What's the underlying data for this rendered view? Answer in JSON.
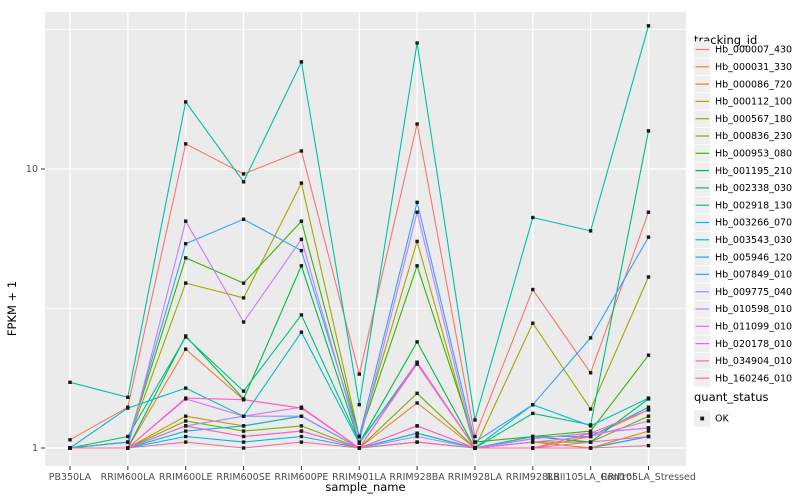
{
  "chart_data": {
    "type": "line",
    "title": "",
    "xlabel": "sample_name",
    "ylabel": "FPKM + 1",
    "y_scale": "log10",
    "y_tick_labels": [
      "1",
      "10"
    ],
    "y_ticks": [
      1,
      10
    ],
    "y_minor_breaks": [
      3.1623,
      31.6228
    ],
    "ylim": [
      0.93,
      38
    ],
    "grid": true,
    "legend_position": "right",
    "panel_background": "#EBEBEB",
    "grid_color": "#FFFFFF",
    "legend_key_fill": "#EFEFEF",
    "tick_color": "#333333",
    "axis_text_color": "#4D4D4D",
    "title_text_color": "#000000",
    "point_color": "#1A1A1A",
    "point_shape": "square",
    "legend": {
      "title": "tracking_id"
    },
    "legend2": {
      "title": "quant_status",
      "entries": [
        "OK"
      ]
    },
    "categories": [
      "PB350LA",
      "RRIM600LA",
      "RRIM600LE",
      "RRIM600SE",
      "RRIM600PE",
      "RRIM901LA",
      "RRIM928BA",
      "RRIM928LA",
      "RRIM928LB",
      "RRII105LA_Control",
      "RRII105LA_Stressed"
    ],
    "series": [
      {
        "name": "Hb_000007_430",
        "color": "#F8766D",
        "values": [
          1.07,
          1.4,
          12.3,
          9.6,
          11.6,
          1.84,
          14.5,
          1.1,
          3.7,
          1.86,
          7.0
        ]
      },
      {
        "name": "Hb_000031_330",
        "color": "#EA8331",
        "values": [
          1.0,
          1.0,
          2.26,
          1.49,
          1.39,
          1.0,
          1.45,
          1.0,
          1.0,
          1.1,
          1.37
        ]
      },
      {
        "name": "Hb_000086_720",
        "color": "#D89000",
        "values": [
          1.0,
          1.0,
          1.3,
          1.2,
          1.3,
          1.0,
          1.2,
          1.0,
          1.05,
          1.0,
          1.15
        ]
      },
      {
        "name": "Hb_000112_100",
        "color": "#C09B00",
        "values": [
          1.0,
          1.0,
          1.2,
          1.1,
          1.15,
          1.0,
          1.13,
          1.0,
          1.0,
          1.0,
          1.1
        ]
      },
      {
        "name": "Hb_000567_180",
        "color": "#A3A500",
        "values": [
          1.0,
          1.05,
          3.9,
          3.45,
          8.9,
          1.1,
          5.5,
          1.0,
          2.8,
          1.38,
          4.1
        ]
      },
      {
        "name": "Hb_000836_230",
        "color": "#7CAE00",
        "values": [
          1.0,
          1.0,
          1.25,
          1.15,
          1.2,
          1.0,
          1.57,
          1.0,
          1.05,
          1.05,
          1.3
        ]
      },
      {
        "name": "Hb_000953_080",
        "color": "#39B600",
        "values": [
          1.0,
          1.05,
          4.8,
          3.9,
          6.5,
          1.1,
          4.5,
          1.05,
          1.1,
          1.15,
          2.15
        ]
      },
      {
        "name": "Hb_001195_210",
        "color": "#00BB4E",
        "values": [
          1.0,
          1.0,
          2.52,
          1.5,
          4.5,
          1.04,
          2.4,
          1.0,
          1.1,
          1.05,
          1.5
        ]
      },
      {
        "name": "Hb_002338_030",
        "color": "#00BF7D",
        "values": [
          1.0,
          1.1,
          2.5,
          1.6,
          3.0,
          1.05,
          2.0,
          1.0,
          1.33,
          1.21,
          13.7
        ]
      },
      {
        "name": "Hb_002918_130",
        "color": "#00C1A3",
        "values": [
          1.72,
          1.52,
          17.4,
          9.0,
          24.2,
          1.43,
          28.3,
          1.26,
          6.7,
          6.0,
          32.6
        ]
      },
      {
        "name": "Hb_003266_070",
        "color": "#00BFC4",
        "values": [
          1.0,
          1.39,
          1.64,
          1.3,
          2.6,
          1.04,
          2.03,
          1.0,
          1.43,
          1.2,
          1.51
        ]
      },
      {
        "name": "Hb_003543_030",
        "color": "#00BAE0",
        "values": [
          1.0,
          1.0,
          1.15,
          1.2,
          1.3,
          1.0,
          1.13,
          1.0,
          1.1,
          1.1,
          1.4
        ]
      },
      {
        "name": "Hb_005946_120",
        "color": "#00B0F6",
        "values": [
          1.0,
          1.0,
          1.1,
          1.05,
          1.1,
          1.0,
          1.05,
          1.0,
          1.0,
          1.0,
          1.1
        ]
      },
      {
        "name": "Hb_007849_010",
        "color": "#35A2FF",
        "values": [
          1.0,
          1.05,
          5.4,
          6.6,
          5.1,
          1.1,
          7.6,
          1.05,
          1.43,
          2.48,
          5.7
        ]
      },
      {
        "name": "Hb_009775_040",
        "color": "#9590FF",
        "values": [
          1.0,
          1.0,
          1.2,
          1.3,
          1.3,
          1.0,
          1.1,
          1.0,
          1.08,
          1.13,
          1.18
        ]
      },
      {
        "name": "Hb_010598_010",
        "color": "#C77CFF",
        "values": [
          1.0,
          1.0,
          6.5,
          2.83,
          5.6,
          1.05,
          7.0,
          1.0,
          1.08,
          1.13,
          1.18
        ]
      },
      {
        "name": "Hb_011099_010",
        "color": "#E76BF3",
        "values": [
          1.0,
          1.0,
          1.5,
          1.3,
          1.4,
          1.0,
          2.0,
          1.0,
          1.05,
          1.1,
          1.25
        ]
      },
      {
        "name": "Hb_020178_010",
        "color": "#FA62DB",
        "values": [
          1.0,
          1.0,
          1.2,
          1.1,
          1.15,
          1.0,
          1.2,
          1.0,
          1.0,
          1.05,
          1.1
        ]
      },
      {
        "name": "Hb_034904_010",
        "color": "#FF62BC",
        "values": [
          1.0,
          1.0,
          1.51,
          1.49,
          1.39,
          1.0,
          2.03,
          1.0,
          1.0,
          1.13,
          1.37
        ]
      },
      {
        "name": "Hb_160246_010",
        "color": "#FF6A98",
        "values": [
          1.0,
          1.0,
          1.05,
          1.0,
          1.05,
          1.0,
          1.05,
          1.0,
          1.0,
          1.0,
          1.02
        ]
      }
    ]
  }
}
